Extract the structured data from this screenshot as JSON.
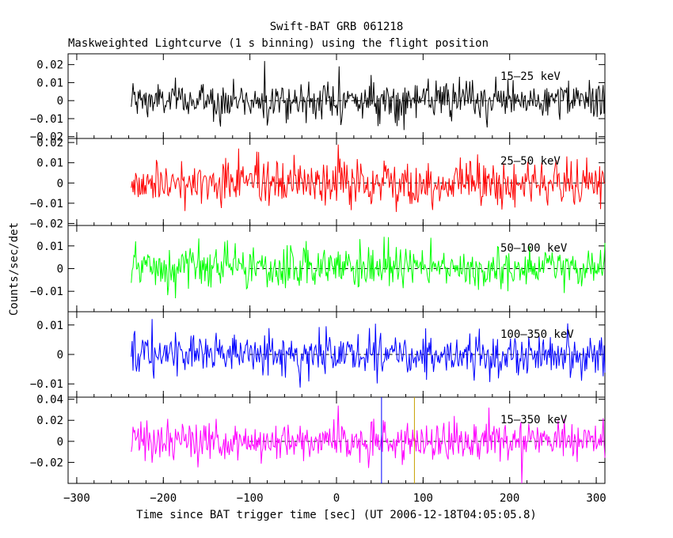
{
  "chart_data": {
    "type": "line",
    "title": "Swift-BAT GRB 061218",
    "subtitle": "Maskweighted Lightcurve (1 s binning) using the flight position",
    "xlabel": "Time since BAT trigger time [sec] (UT 2006-12-18T04:05:05.8)",
    "ylabel": "Counts/sec/det",
    "xlim": [
      -310,
      310
    ],
    "x_ticks": [
      -300,
      -200,
      -100,
      0,
      100,
      200,
      300
    ],
    "data_range": [
      -237,
      310
    ],
    "bin_seconds": 1,
    "markers": [
      {
        "x": 52,
        "color": "#0000ff"
      },
      {
        "x": 90,
        "color": "#c8a000"
      }
    ],
    "panels": [
      {
        "band": "15–25 keV",
        "color": "#000000",
        "ylim": [
          -0.021,
          0.026
        ],
        "y_ticks": [
          -0.02,
          -0.01,
          0,
          0.01,
          0.02
        ],
        "y_tick_labels": [
          "−0.02",
          "−0.01",
          "0",
          "0.01",
          "0.02"
        ],
        "noise_sigma": 0.0052,
        "spikes": [
          {
            "x": -83,
            "value": 0.022
          },
          {
            "x": 3,
            "value": 0.019
          }
        ]
      },
      {
        "band": "25–50 keV",
        "color": "#ff0000",
        "ylim": [
          -0.021,
          0.022
        ],
        "y_ticks": [
          -0.02,
          -0.01,
          0,
          0.01,
          0.02
        ],
        "y_tick_labels": [
          "−0.02",
          "−0.01",
          "0",
          "0.01",
          "0.02"
        ],
        "noise_sigma": 0.0058,
        "spikes": [
          {
            "x": 2,
            "value": 0.019
          },
          {
            "x": -113,
            "value": 0.017
          }
        ]
      },
      {
        "band": "50–100 keV",
        "color": "#00ff00",
        "ylim": [
          -0.019,
          0.019
        ],
        "y_ticks": [
          -0.01,
          0,
          0.01
        ],
        "y_tick_labels": [
          "−0.01",
          "0",
          "0.01"
        ],
        "noise_sigma": 0.0046,
        "spikes": [
          {
            "x": 55,
            "value": 0.014
          }
        ]
      },
      {
        "band": "100–350 keV",
        "color": "#0000ff",
        "ylim": [
          -0.0145,
          0.0145
        ],
        "y_ticks": [
          -0.01,
          0,
          0.01
        ],
        "y_tick_labels": [
          "−0.01",
          "0",
          "0.01"
        ],
        "noise_sigma": 0.0036,
        "spikes": [
          {
            "x": -213,
            "value": 0.012
          }
        ]
      },
      {
        "band": "15–350 keV",
        "color": "#ff00ff",
        "ylim": [
          -0.04,
          0.042
        ],
        "y_ticks": [
          -0.02,
          0,
          0.02,
          0.04
        ],
        "y_tick_labels": [
          "−0.02",
          "0",
          "0.02",
          "0.04"
        ],
        "noise_sigma": 0.0095,
        "spikes": [
          {
            "x": 2,
            "value": 0.034
          },
          {
            "x": 176,
            "value": 0.032
          }
        ]
      }
    ]
  }
}
